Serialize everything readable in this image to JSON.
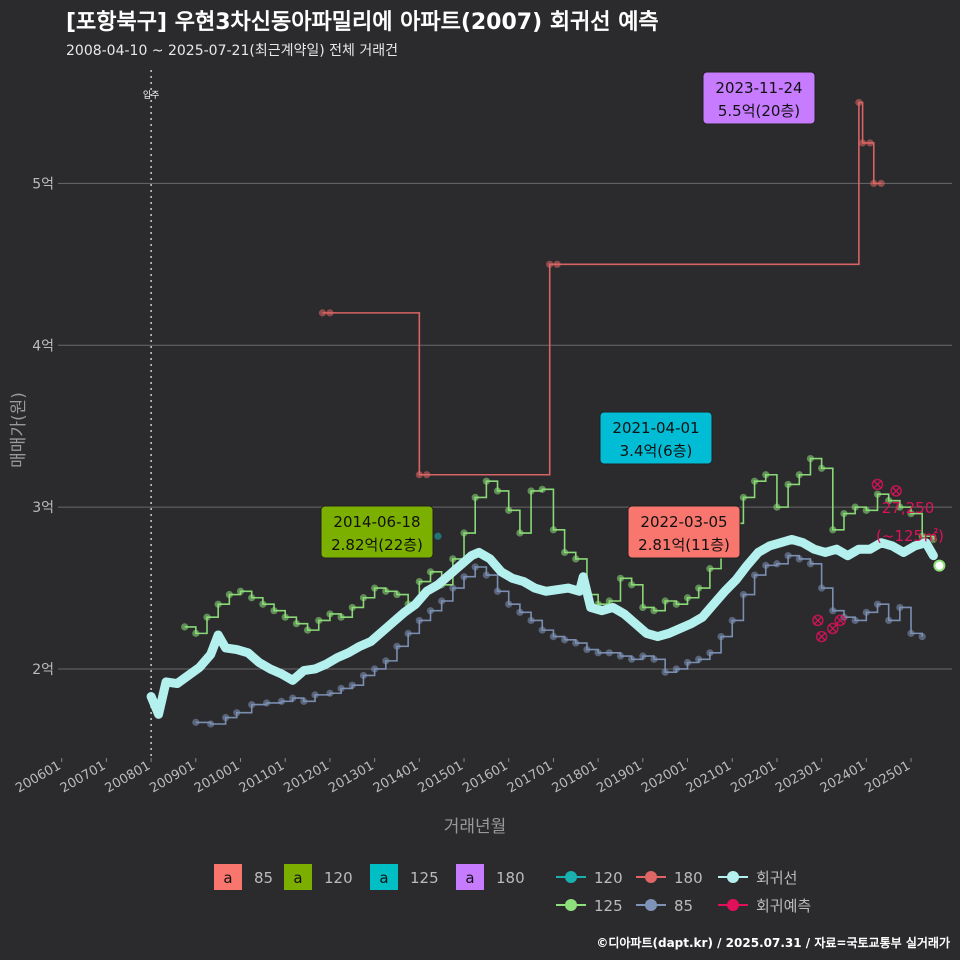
{
  "header": {
    "title": "[포항북구] 우현3차신동아파밀리에 아파트(2007) 회귀선 예측",
    "subtitle": "2008-04-10 ~ 2025-07-21(최근계약일) 전체 거래건",
    "credit": "©디아파트(dapt.kr) / 2025.07.31 / 자료=국토교통부 실거래가"
  },
  "chart_data": {
    "type": "line",
    "xlabel": "거래년월",
    "ylabel": "매매가(원)",
    "x_range": [
      "2005-12-01",
      "2025-12-01"
    ],
    "ylim": [
      1.45,
      5.75
    ],
    "x_ticks": [
      "200601",
      "200701",
      "200801",
      "200901",
      "201001",
      "201101",
      "201201",
      "201301",
      "201401",
      "201501",
      "201601",
      "201701",
      "201801",
      "201901",
      "202001",
      "202101",
      "202201",
      "202301",
      "202401",
      "202501"
    ],
    "y_ticks": [
      {
        "value": 2,
        "label": "2억"
      },
      {
        "value": 3,
        "label": "3억"
      },
      {
        "value": 4,
        "label": "4억"
      },
      {
        "value": 5,
        "label": "5억"
      }
    ],
    "grid": true,
    "move_in": {
      "date": "2008-01-01",
      "label": "입주"
    },
    "colors": {
      "85": "#7f93b8",
      "120": "#8ee07a",
      "125": "#1ab0b0",
      "180": "#e06666",
      "regression": "#b4f0ee",
      "forecast": "#e0105a",
      "bg": "#2b2b2d"
    },
    "series": [
      {
        "name": "85",
        "color": "#7f93b8",
        "points": [
          [
            "2009-01",
            1.67
          ],
          [
            "2009-05",
            1.66
          ],
          [
            "2009-09",
            1.7
          ],
          [
            "2009-12",
            1.73
          ],
          [
            "2010-04",
            1.78
          ],
          [
            "2010-08",
            1.79
          ],
          [
            "2010-12",
            1.8
          ],
          [
            "2011-03",
            1.82
          ],
          [
            "2011-06",
            1.8
          ],
          [
            "2011-09",
            1.84
          ],
          [
            "2012-01",
            1.85
          ],
          [
            "2012-04",
            1.88
          ],
          [
            "2012-07",
            1.9
          ],
          [
            "2012-10",
            1.96
          ],
          [
            "2013-01",
            2.0
          ],
          [
            "2013-04",
            2.05
          ],
          [
            "2013-07",
            2.14
          ],
          [
            "2013-10",
            2.22
          ],
          [
            "2014-01",
            2.3
          ],
          [
            "2014-04",
            2.36
          ],
          [
            "2014-07",
            2.42
          ],
          [
            "2014-10",
            2.5
          ],
          [
            "2015-01",
            2.57
          ],
          [
            "2015-04",
            2.63
          ],
          [
            "2015-07",
            2.58
          ],
          [
            "2015-10",
            2.48
          ],
          [
            "2016-01",
            2.4
          ],
          [
            "2016-04",
            2.35
          ],
          [
            "2016-07",
            2.3
          ],
          [
            "2016-10",
            2.24
          ],
          [
            "2017-01",
            2.2
          ],
          [
            "2017-04",
            2.18
          ],
          [
            "2017-07",
            2.16
          ],
          [
            "2017-10",
            2.12
          ],
          [
            "2018-01",
            2.1
          ],
          [
            "2018-04",
            2.1
          ],
          [
            "2018-07",
            2.08
          ],
          [
            "2018-10",
            2.06
          ],
          [
            "2019-01",
            2.08
          ],
          [
            "2019-04",
            2.06
          ],
          [
            "2019-07",
            1.98
          ],
          [
            "2019-10",
            2.0
          ],
          [
            "2020-01",
            2.04
          ],
          [
            "2020-04",
            2.06
          ],
          [
            "2020-07",
            2.1
          ],
          [
            "2020-10",
            2.2
          ],
          [
            "2021-01",
            2.3
          ],
          [
            "2021-04",
            2.46
          ],
          [
            "2021-07",
            2.58
          ],
          [
            "2021-10",
            2.64
          ],
          [
            "2022-01",
            2.65
          ],
          [
            "2022-04",
            2.7
          ],
          [
            "2022-07",
            2.68
          ],
          [
            "2022-10",
            2.65
          ],
          [
            "2023-01",
            2.5
          ],
          [
            "2023-04",
            2.36
          ],
          [
            "2023-07",
            2.32
          ],
          [
            "2023-10",
            2.3
          ],
          [
            "2024-01",
            2.35
          ],
          [
            "2024-04",
            2.4
          ],
          [
            "2024-07",
            2.3
          ],
          [
            "2024-10",
            2.38
          ],
          [
            "2025-01",
            2.22
          ],
          [
            "2025-04",
            2.2
          ]
        ]
      },
      {
        "name": "120",
        "color": "#8ee07a",
        "points": [
          [
            "2008-10",
            2.26
          ],
          [
            "2009-01",
            2.22
          ],
          [
            "2009-04",
            2.32
          ],
          [
            "2009-07",
            2.4
          ],
          [
            "2009-10",
            2.46
          ],
          [
            "2010-01",
            2.48
          ],
          [
            "2010-04",
            2.44
          ],
          [
            "2010-07",
            2.4
          ],
          [
            "2010-10",
            2.36
          ],
          [
            "2011-01",
            2.32
          ],
          [
            "2011-04",
            2.28
          ],
          [
            "2011-07",
            2.24
          ],
          [
            "2011-10",
            2.3
          ],
          [
            "2012-01",
            2.34
          ],
          [
            "2012-04",
            2.32
          ],
          [
            "2012-07",
            2.38
          ],
          [
            "2012-10",
            2.44
          ],
          [
            "2013-01",
            2.5
          ],
          [
            "2013-04",
            2.48
          ],
          [
            "2013-07",
            2.46
          ],
          [
            "2013-10",
            2.4
          ],
          [
            "2014-01",
            2.54
          ],
          [
            "2014-04",
            2.6
          ],
          [
            "2014-07",
            2.52
          ],
          [
            "2014-10",
            2.68
          ],
          [
            "2015-01",
            2.84
          ],
          [
            "2015-04",
            3.06
          ],
          [
            "2015-07",
            3.16
          ],
          [
            "2015-10",
            3.1
          ],
          [
            "2016-01",
            2.98
          ],
          [
            "2016-04",
            2.84
          ],
          [
            "2016-07",
            3.1
          ],
          [
            "2016-10",
            3.11
          ],
          [
            "2017-01",
            2.86
          ],
          [
            "2017-04",
            2.72
          ],
          [
            "2017-07",
            2.68
          ],
          [
            "2017-10",
            2.46
          ],
          [
            "2018-01",
            2.4
          ],
          [
            "2018-04",
            2.42
          ],
          [
            "2018-07",
            2.56
          ],
          [
            "2018-10",
            2.52
          ],
          [
            "2019-01",
            2.38
          ],
          [
            "2019-04",
            2.36
          ],
          [
            "2019-07",
            2.42
          ],
          [
            "2019-10",
            2.4
          ],
          [
            "2020-01",
            2.44
          ],
          [
            "2020-04",
            2.5
          ],
          [
            "2020-07",
            2.62
          ],
          [
            "2020-10",
            2.74
          ],
          [
            "2021-01",
            2.9
          ],
          [
            "2021-04",
            3.06
          ],
          [
            "2021-07",
            3.16
          ],
          [
            "2021-10",
            3.2
          ],
          [
            "2022-01",
            3.0
          ],
          [
            "2022-04",
            3.14
          ],
          [
            "2022-07",
            3.2
          ],
          [
            "2022-10",
            3.3
          ],
          [
            "2023-01",
            3.24
          ],
          [
            "2023-04",
            2.86
          ],
          [
            "2023-07",
            2.96
          ],
          [
            "2023-10",
            3.0
          ],
          [
            "2024-01",
            2.98
          ],
          [
            "2024-04",
            3.08
          ],
          [
            "2024-07",
            3.04
          ],
          [
            "2024-10",
            3.0
          ],
          [
            "2025-01",
            2.96
          ],
          [
            "2025-04",
            2.82
          ],
          [
            "2025-07",
            2.8
          ]
        ]
      },
      {
        "name": "125",
        "color": "#1ab0b0",
        "points": [
          [
            "2014-06",
            2.82
          ]
        ]
      },
      {
        "name": "180",
        "color": "#e06666",
        "points": [
          [
            "2011-11",
            4.2
          ],
          [
            "2012-01",
            4.2
          ],
          [
            "2014-01",
            3.2
          ],
          [
            "2014-03",
            3.2
          ],
          [
            "2016-12",
            4.5
          ],
          [
            "2017-02",
            4.5
          ],
          [
            "2023-11",
            5.5
          ],
          [
            "2023-12",
            5.25
          ],
          [
            "2024-02",
            5.25
          ],
          [
            "2024-03",
            5.0
          ],
          [
            "2024-05",
            5.0
          ]
        ]
      }
    ],
    "regression": {
      "name": "회귀선",
      "color": "#b4f0ee",
      "points": [
        [
          "2008-01",
          1.83
        ],
        [
          "2008-03",
          1.72
        ],
        [
          "2008-05",
          1.92
        ],
        [
          "2008-08",
          1.91
        ],
        [
          "2008-11",
          1.96
        ],
        [
          "2009-02",
          2.01
        ],
        [
          "2009-05",
          2.09
        ],
        [
          "2009-07",
          2.21
        ],
        [
          "2009-09",
          2.13
        ],
        [
          "2009-12",
          2.12
        ],
        [
          "2010-03",
          2.1
        ],
        [
          "2010-06",
          2.04
        ],
        [
          "2010-09",
          2.0
        ],
        [
          "2010-12",
          1.97
        ],
        [
          "2011-03",
          1.93
        ],
        [
          "2011-06",
          1.99
        ],
        [
          "2011-09",
          2.0
        ],
        [
          "2011-12",
          2.03
        ],
        [
          "2012-03",
          2.07
        ],
        [
          "2012-06",
          2.1
        ],
        [
          "2012-09",
          2.14
        ],
        [
          "2012-12",
          2.17
        ],
        [
          "2013-03",
          2.23
        ],
        [
          "2013-06",
          2.29
        ],
        [
          "2013-09",
          2.35
        ],
        [
          "2013-12",
          2.4
        ],
        [
          "2014-03",
          2.48
        ],
        [
          "2014-06",
          2.52
        ],
        [
          "2014-09",
          2.58
        ],
        [
          "2014-12",
          2.64
        ],
        [
          "2015-03",
          2.7
        ],
        [
          "2015-05",
          2.72
        ],
        [
          "2015-08",
          2.68
        ],
        [
          "2015-11",
          2.6
        ],
        [
          "2016-02",
          2.56
        ],
        [
          "2016-05",
          2.54
        ],
        [
          "2016-08",
          2.5
        ],
        [
          "2016-11",
          2.48
        ],
        [
          "2017-02",
          2.49
        ],
        [
          "2017-05",
          2.5
        ],
        [
          "2017-08",
          2.48
        ],
        [
          "2017-09",
          2.57
        ],
        [
          "2017-11",
          2.38
        ],
        [
          "2018-02",
          2.36
        ],
        [
          "2018-05",
          2.38
        ],
        [
          "2018-08",
          2.34
        ],
        [
          "2018-11",
          2.28
        ],
        [
          "2019-02",
          2.22
        ],
        [
          "2019-05",
          2.2
        ],
        [
          "2019-08",
          2.22
        ],
        [
          "2019-11",
          2.25
        ],
        [
          "2020-02",
          2.28
        ],
        [
          "2020-05",
          2.32
        ],
        [
          "2020-08",
          2.4
        ],
        [
          "2020-11",
          2.48
        ],
        [
          "2021-02",
          2.55
        ],
        [
          "2021-05",
          2.64
        ],
        [
          "2021-08",
          2.72
        ],
        [
          "2021-11",
          2.76
        ],
        [
          "2022-02",
          2.78
        ],
        [
          "2022-05",
          2.8
        ],
        [
          "2022-08",
          2.78
        ],
        [
          "2022-11",
          2.74
        ],
        [
          "2023-02",
          2.72
        ],
        [
          "2023-05",
          2.74
        ],
        [
          "2023-08",
          2.7
        ],
        [
          "2023-11",
          2.74
        ],
        [
          "2024-02",
          2.74
        ],
        [
          "2024-05",
          2.78
        ],
        [
          "2024-08",
          2.76
        ],
        [
          "2024-11",
          2.72
        ],
        [
          "2025-02",
          2.76
        ],
        [
          "2025-05",
          2.78
        ],
        [
          "2025-07",
          2.7
        ]
      ]
    },
    "forecast": {
      "name": "회귀예측",
      "color": "#e0105a",
      "points": [
        [
          "2022-12",
          2.3
        ],
        [
          "2023-01",
          2.2
        ],
        [
          "2023-04",
          2.25
        ],
        [
          "2023-06",
          2.3
        ],
        [
          "2024-04",
          3.14
        ],
        [
          "2024-09",
          3.1
        ]
      ]
    },
    "annotations": [
      {
        "date": "2014-06",
        "value": 2.82,
        "date_label": "2014-06-18",
        "price_label": "2.82억(22층)",
        "color": "#7cb000",
        "text_color": "#111111"
      },
      {
        "date": "2021-04",
        "value": 3.4,
        "date_label": "2021-04-01",
        "price_label": "3.4억(6층)",
        "color": "#00bcd4",
        "text_color": "#111111"
      },
      {
        "date": "2022-03",
        "value": 2.81,
        "date_label": "2022-03-05",
        "price_label": "2.81억(11층)",
        "color": "#f8766d",
        "text_color": "#111111"
      },
      {
        "date": "2023-11",
        "value": 5.5,
        "date_label": "2023-11-24",
        "price_label": "5.5억(20층)",
        "color": "#c77cff",
        "text_color": "#111111"
      }
    ],
    "forecast_label": {
      "value": "27,250",
      "area": "(~125㎡)"
    },
    "legend_left": [
      {
        "key": "a",
        "label": "85",
        "color": "#f8766d"
      },
      {
        "key": "a",
        "label": "120",
        "color": "#7cae00"
      },
      {
        "key": "a",
        "label": "125",
        "color": "#00bfc4"
      },
      {
        "key": "a",
        "label": "180",
        "color": "#c77cff"
      }
    ],
    "legend_right": [
      {
        "label": "120",
        "color": "#1ab0b0"
      },
      {
        "label": "180",
        "color": "#e06666"
      },
      {
        "label": "회귀선",
        "color": "#b4f0ee"
      },
      {
        "label": "125",
        "color": "#8ee07a"
      },
      {
        "label": "85",
        "color": "#7f93b8"
      },
      {
        "label": "회귀예측",
        "color": "#e0105a"
      }
    ]
  }
}
